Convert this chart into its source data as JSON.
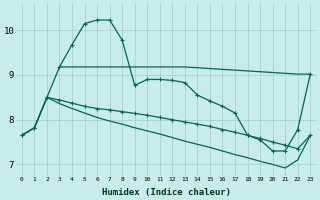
{
  "xlabel": "Humidex (Indice chaleur)",
  "bg_color": "#c8ede8",
  "grid_color": "#a0ccc8",
  "line_color": "#006655",
  "xlim": [
    -0.5,
    23.5
  ],
  "ylim": [
    6.75,
    10.6
  ],
  "xticks": [
    0,
    1,
    2,
    3,
    4,
    5,
    6,
    7,
    8,
    9,
    10,
    11,
    12,
    13,
    14,
    15,
    16,
    17,
    18,
    19,
    20,
    21,
    22,
    23
  ],
  "yticks": [
    7,
    8,
    9,
    10
  ],
  "curve_x": [
    0,
    1,
    2,
    3,
    4,
    5,
    6,
    7,
    8,
    9,
    10,
    11,
    12,
    13,
    14,
    15,
    16,
    17,
    18,
    19,
    20,
    21,
    22,
    23
  ],
  "curve_y": [
    7.65,
    7.82,
    8.5,
    9.18,
    9.68,
    10.15,
    10.23,
    10.23,
    9.78,
    8.77,
    8.9,
    8.9,
    8.88,
    8.83,
    8.55,
    8.42,
    8.3,
    8.15,
    7.65,
    7.55,
    7.3,
    7.3,
    7.78,
    9.02
  ],
  "flat_x": [
    3,
    7,
    9,
    13,
    22,
    23
  ],
  "flat_y": [
    9.18,
    9.18,
    9.18,
    9.18,
    9.02,
    9.02
  ],
  "diag1_x": [
    0,
    1,
    2,
    3,
    4,
    5,
    6,
    7,
    8,
    9,
    10,
    11,
    12,
    13,
    14,
    15,
    16,
    17,
    18,
    19,
    20,
    21,
    22,
    23
  ],
  "diag1_y": [
    7.65,
    7.82,
    8.5,
    8.44,
    8.37,
    8.3,
    8.25,
    8.22,
    8.18,
    8.14,
    8.1,
    8.05,
    8.0,
    7.95,
    7.9,
    7.85,
    7.78,
    7.72,
    7.65,
    7.58,
    7.5,
    7.43,
    7.35,
    7.65
  ],
  "diag2_x": [
    0,
    1,
    2,
    3,
    4,
    5,
    6,
    7,
    8,
    9,
    10,
    11,
    12,
    13,
    14,
    15,
    16,
    17,
    18,
    19,
    20,
    21,
    22,
    23
  ],
  "diag2_y": [
    7.65,
    7.82,
    8.5,
    8.36,
    8.25,
    8.15,
    8.05,
    7.97,
    7.9,
    7.82,
    7.75,
    7.68,
    7.6,
    7.52,
    7.45,
    7.38,
    7.3,
    7.22,
    7.15,
    7.07,
    7.0,
    6.92,
    7.1,
    7.65
  ]
}
